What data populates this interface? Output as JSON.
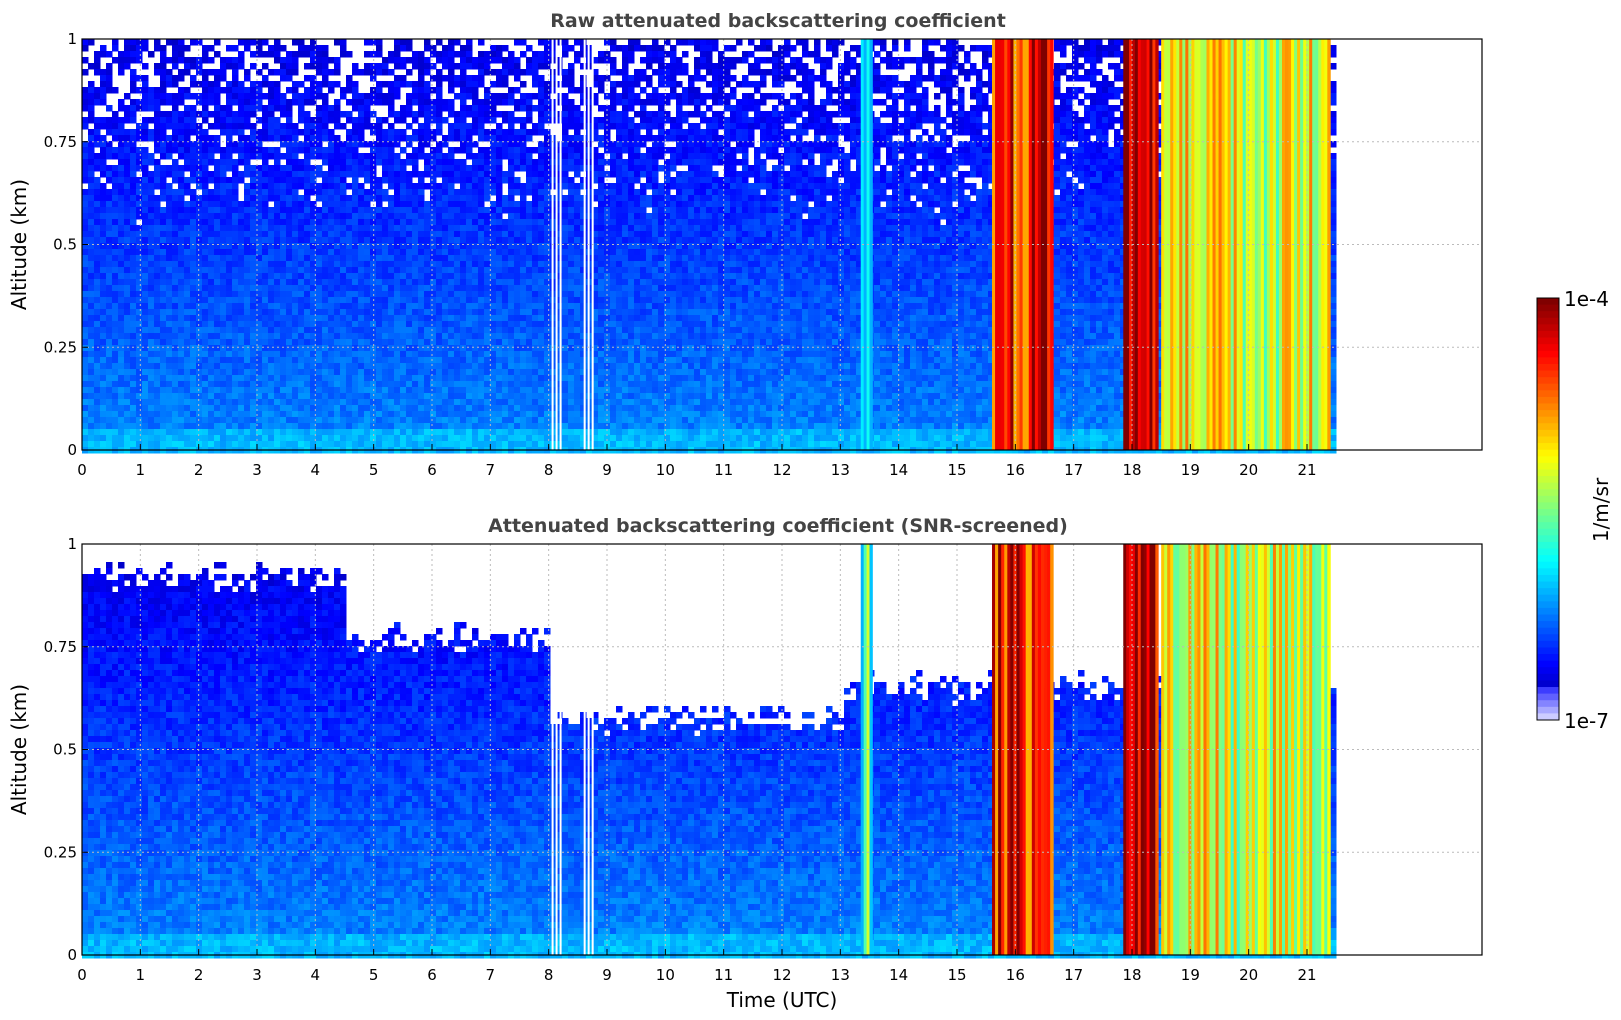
{
  "chart_data": [
    {
      "type": "heatmap",
      "title": "Raw attenuated backscattering coefficient",
      "xlabel": "",
      "ylabel": "Altitude (km)",
      "xlim": [
        0,
        24
      ],
      "ylim": [
        0,
        1
      ],
      "xticks": [
        "0",
        "1",
        "2",
        "3",
        "4",
        "5",
        "6",
        "7",
        "8",
        "9",
        "10",
        "11",
        "12",
        "13",
        "14",
        "15",
        "16",
        "17",
        "18",
        "19",
        "20",
        "21"
      ],
      "yticks": [
        "0",
        "0.25",
        "0.5",
        "0.75",
        "1"
      ],
      "data_extent_hours": [
        0,
        21.45
      ],
      "grid": true,
      "screened": false,
      "features": [
        {
          "desc": "gap columns",
          "x": [
            8.05,
            8.25
          ]
        },
        {
          "desc": "gap columns",
          "x": [
            8.6,
            8.8
          ]
        },
        {
          "desc": "cloud column",
          "x": [
            13.35,
            13.55
          ],
          "level": 0.42
        },
        {
          "desc": "cloud column",
          "x": [
            15.6,
            16.65
          ],
          "level": 0.85
        },
        {
          "desc": "cloud column",
          "x": [
            17.85,
            18.45
          ],
          "level": 0.95
        },
        {
          "desc": "cloud column",
          "x": [
            18.5,
            21.4
          ],
          "level": 0.6
        }
      ]
    },
    {
      "type": "heatmap",
      "title": "Attenuated backscattering coefficient (SNR-screened)",
      "xlabel": "Time (UTC)",
      "ylabel": "Altitude (km)",
      "xlim": [
        0,
        24
      ],
      "ylim": [
        0,
        1
      ],
      "xticks": [
        "0",
        "1",
        "2",
        "3",
        "4",
        "5",
        "6",
        "7",
        "8",
        "9",
        "10",
        "11",
        "12",
        "13",
        "14",
        "15",
        "16",
        "17",
        "18",
        "19",
        "20",
        "21"
      ],
      "yticks": [
        "0",
        "0.25",
        "0.5",
        "0.75",
        "1"
      ],
      "data_extent_hours": [
        0,
        21.45
      ],
      "grid": true,
      "screened": true,
      "features": [
        {
          "desc": "gap columns",
          "x": [
            8.05,
            8.25
          ]
        },
        {
          "desc": "gap columns",
          "x": [
            8.6,
            8.8
          ]
        },
        {
          "desc": "cloud column",
          "x": [
            13.35,
            13.55
          ],
          "level": 0.42
        },
        {
          "desc": "cloud column",
          "x": [
            15.6,
            16.65
          ],
          "level": 0.85
        },
        {
          "desc": "cloud column",
          "x": [
            17.85,
            18.45
          ],
          "level": 0.95
        },
        {
          "desc": "cloud column",
          "x": [
            18.5,
            21.4
          ],
          "level": 0.6
        }
      ]
    }
  ],
  "colorbar": {
    "label": "1/m/sr",
    "max_label": "1e-4",
    "min_label": "1e-7",
    "colormap": "jet",
    "range": [
      1e-07,
      0.0001
    ]
  }
}
